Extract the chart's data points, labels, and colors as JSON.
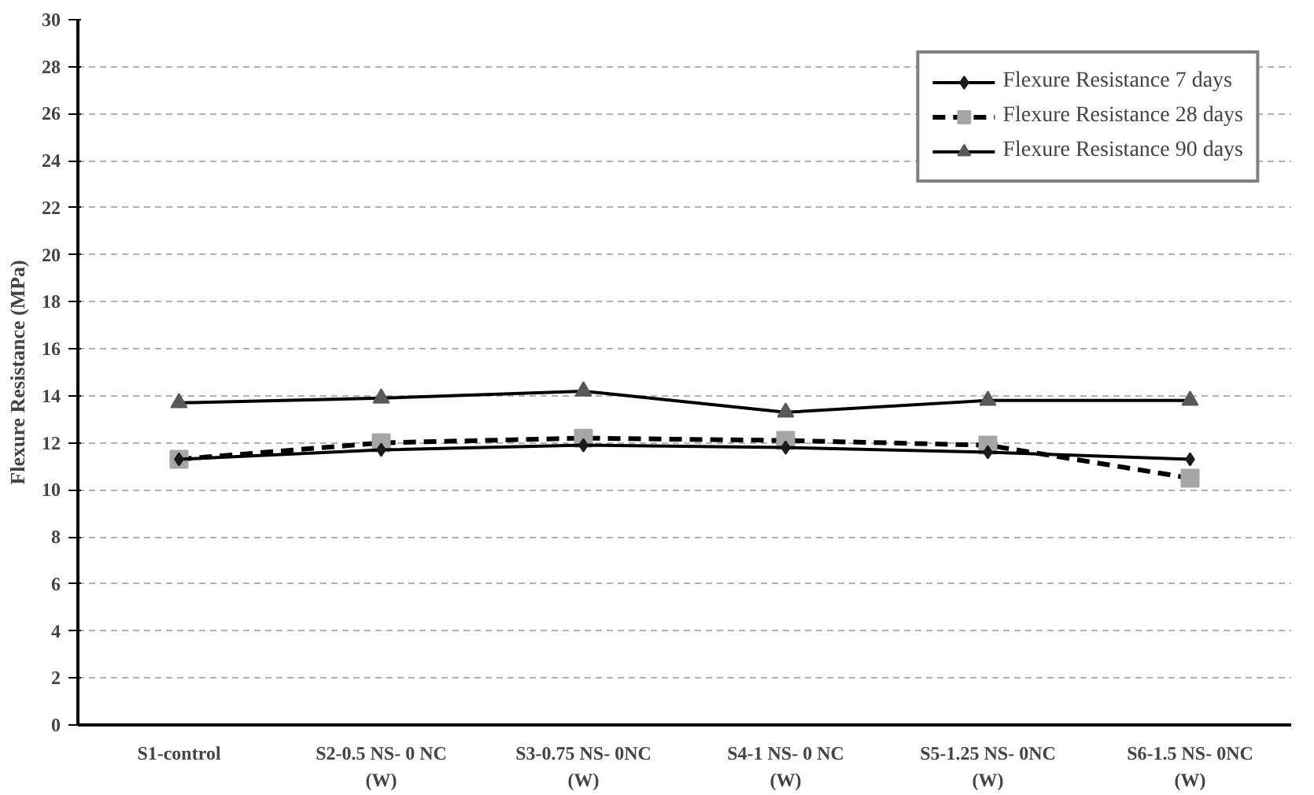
{
  "chart_data": {
    "type": "line",
    "ylabel": "Flexure Resistance (MPa)",
    "categories": [
      "S1-control",
      "S2-0.5 NS- 0 NC\n(W)",
      "S3-0.75 NS- 0NC\n(W)",
      "S4-1 NS- 0 NC\n(W)",
      "S5-1.25 NS- 0NC\n(W)",
      "S6-1.5 NS- 0NC\n(W)"
    ],
    "series": [
      {
        "name": "Flexure Resistance 7 days",
        "color": "#1a1a1a",
        "marker": "diamond",
        "line_style": "solid",
        "values": [
          11.3,
          11.7,
          11.9,
          11.8,
          11.6,
          11.3
        ]
      },
      {
        "name": "Flexure Resistance 28 days",
        "color": "#a6a6a6",
        "marker": "square",
        "line_style": "dashed",
        "values": [
          11.3,
          12.0,
          12.2,
          12.1,
          11.9,
          10.5
        ]
      },
      {
        "name": "Flexure Resistance 90 days",
        "color": "#595959",
        "marker": "triangle",
        "line_style": "solid",
        "values": [
          13.7,
          13.9,
          14.2,
          13.3,
          13.8,
          13.8
        ]
      }
    ],
    "ylim": [
      0,
      30
    ],
    "yticks": [
      0,
      2,
      4,
      6,
      8,
      10,
      12,
      14,
      16,
      18,
      20,
      22,
      24,
      26,
      28,
      30
    ],
    "grid": "y",
    "legend": "top right"
  }
}
